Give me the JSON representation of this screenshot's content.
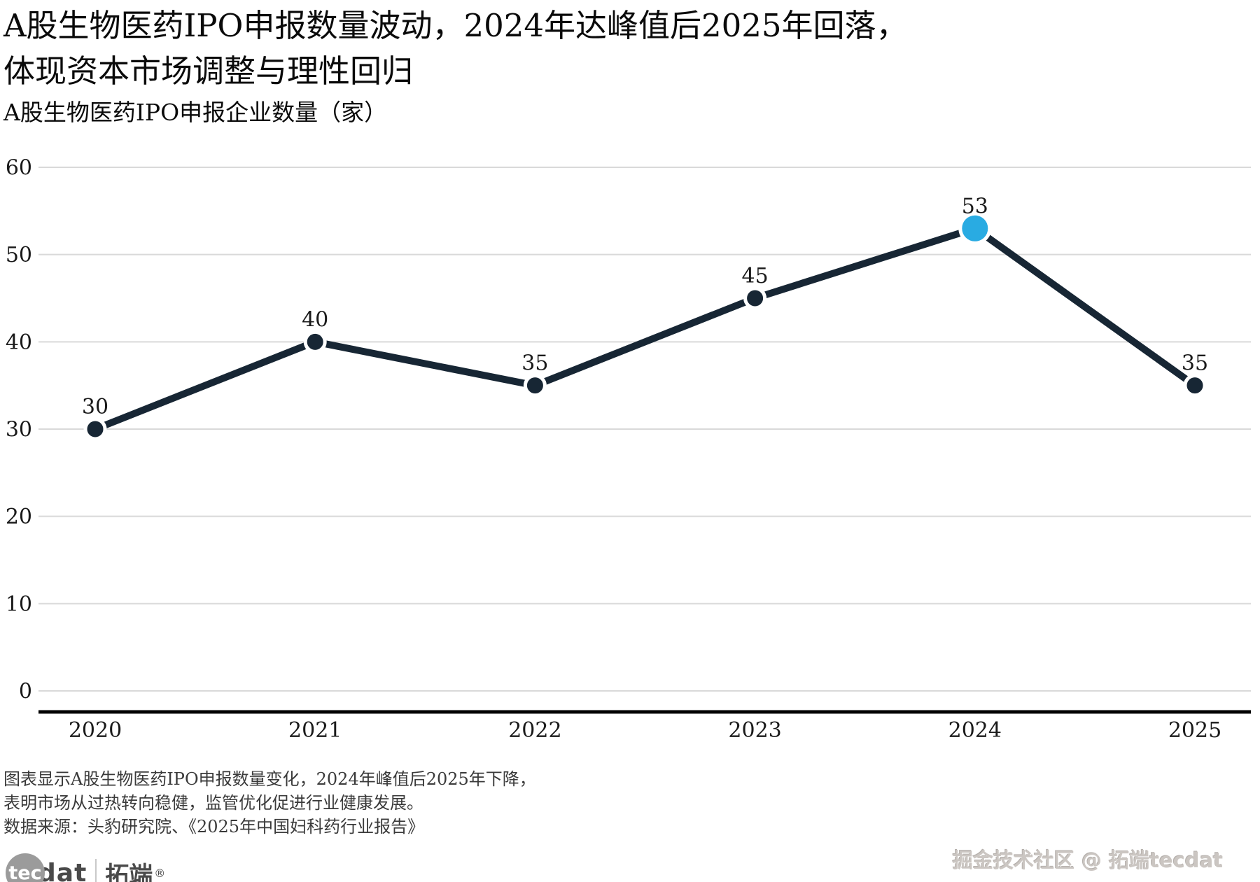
{
  "header": {
    "title_line1": "A股生物医药IPO申报数量波动，2024年达峰值后2025年回落，",
    "title_line2": "体现资本市场调整与理性回归",
    "subtitle": "A股生物医药IPO申报企业数量（家）"
  },
  "chart_data": {
    "type": "line",
    "title": "A股生物医药IPO申报企业数量（家）",
    "categories": [
      "2020",
      "2021",
      "2022",
      "2023",
      "2024",
      "2025"
    ],
    "values": [
      30,
      40,
      35,
      45,
      53,
      35
    ],
    "highlight_index": 4,
    "highlight_value": 53,
    "xlabel": "",
    "ylabel": "",
    "ylim": [
      0,
      60
    ],
    "yticks": [
      0,
      10,
      20,
      30,
      40,
      50,
      60
    ],
    "grid": "horizontal",
    "legend": "none",
    "colors": {
      "line": "#172634",
      "point": "#172634",
      "highlight": "#29abe2",
      "gridline": "#d9d9d9",
      "axis": "#000000",
      "tick_label": "#1a1a1a",
      "value_label": "#1a1a1a"
    }
  },
  "footnote": {
    "line1": "图表显示A股生物医药IPO申报数量变化，2024年峰值后2025年下降，",
    "line2": "表明市场从过热转向稳健，监管优化促进行业健康发展。",
    "line3": "数据来源：头豹研究院、《2025年中国妇科药行业报告》"
  },
  "branding": {
    "logo_circle_text": "tec",
    "logo_text": "dat",
    "logo_cn": "拓端",
    "logo_reg": "®",
    "watermark": "掘金技术社区 @ 拓端tecdat"
  }
}
